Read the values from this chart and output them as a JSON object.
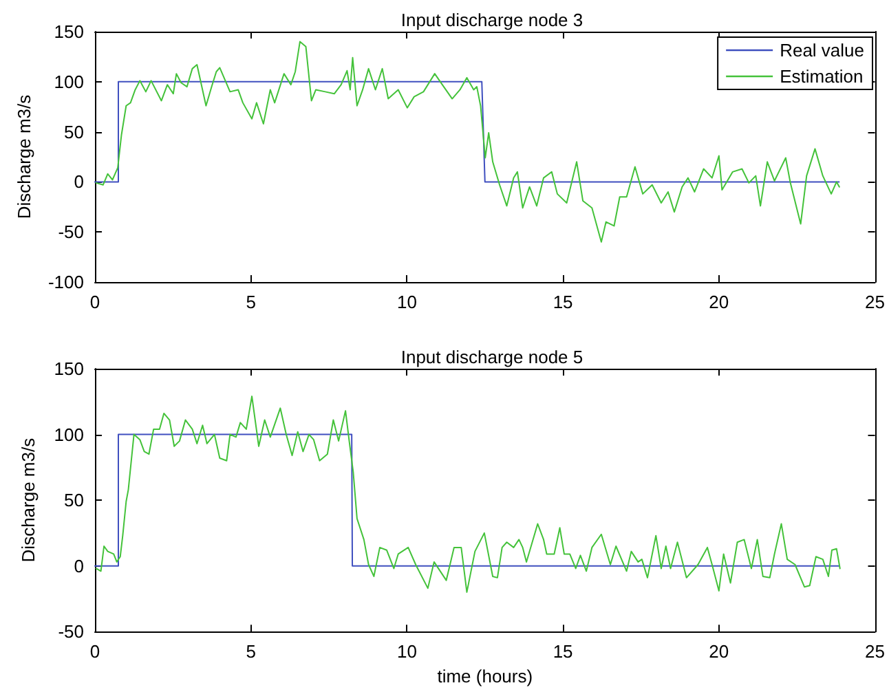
{
  "chart_data": [
    {
      "type": "line",
      "title": "Input discharge node 3",
      "ylabel": "Discharge m3/s",
      "xlim": [
        0,
        25
      ],
      "xticks": [
        0,
        5,
        10,
        15,
        20,
        25
      ],
      "ylim": [
        -100,
        150
      ],
      "yticks": [
        -100,
        -50,
        0,
        50,
        100,
        150
      ],
      "legend": "top right",
      "grid": false,
      "marker": "none",
      "line_style": "solid",
      "series": [
        {
          "name": "Real value",
          "color": "#3f4fbf",
          "x": [
            0,
            0.75,
            0.75,
            12.4,
            12.5,
            23.85
          ],
          "values": [
            0,
            0,
            100,
            100,
            0,
            0
          ]
        },
        {
          "name": "Estimation",
          "color": "#44c23a",
          "x": [
            0.04,
            0.26,
            0.41,
            0.56,
            0.73,
            0.85,
            1.0,
            1.14,
            1.29,
            1.44,
            1.63,
            1.8,
            2.13,
            2.32,
            2.51,
            2.61,
            2.76,
            2.95,
            3.12,
            3.27,
            3.56,
            3.74,
            3.89,
            4.0,
            4.33,
            4.59,
            4.74,
            5.03,
            5.18,
            5.4,
            5.62,
            5.76,
            6.06,
            6.28,
            6.42,
            6.57,
            6.76,
            6.94,
            7.08,
            7.38,
            7.67,
            7.89,
            8.08,
            8.18,
            8.26,
            8.4,
            8.58,
            8.77,
            8.99,
            9.21,
            9.4,
            9.72,
            10.01,
            10.23,
            10.53,
            10.89,
            11.18,
            11.45,
            11.7,
            11.92,
            12.14,
            12.24,
            12.36,
            12.51,
            12.62,
            12.75,
            12.97,
            13.2,
            13.42,
            13.54,
            13.71,
            13.93,
            14.16,
            14.38,
            14.64,
            14.82,
            15.12,
            15.44,
            15.64,
            15.93,
            16.23,
            16.38,
            16.64,
            16.82,
            17.04,
            17.31,
            17.56,
            17.86,
            18.15,
            18.37,
            18.57,
            18.82,
            19.01,
            19.22,
            19.51,
            19.78,
            20.0,
            20.1,
            20.44,
            20.74,
            20.96,
            21.18,
            21.33,
            21.55,
            21.78,
            22.14,
            22.29,
            22.62,
            22.81,
            23.08,
            23.33,
            23.6,
            23.77,
            23.86
          ],
          "values": [
            -1,
            -3,
            8,
            2,
            14,
            47,
            76,
            79,
            92,
            101,
            90,
            101,
            81,
            97,
            88,
            108,
            99,
            95,
            113,
            117,
            76,
            95,
            110,
            114,
            90,
            92,
            79,
            63,
            79,
            58,
            92,
            79,
            108,
            97,
            110,
            140,
            135,
            81,
            92,
            90,
            88,
            97,
            111,
            92,
            124,
            76,
            92,
            113,
            92,
            113,
            83,
            92,
            74,
            85,
            90,
            108,
            95,
            83,
            92,
            104,
            92,
            95,
            76,
            24,
            49,
            20,
            -3,
            -24,
            4,
            10,
            -26,
            -5,
            -24,
            4,
            10,
            -12,
            -21,
            20,
            -19,
            -26,
            -60,
            -40,
            -44,
            -15,
            -15,
            15,
            -12,
            -3,
            -21,
            -10,
            -30,
            -5,
            4,
            -10,
            13,
            4,
            26,
            -8,
            10,
            13,
            -1,
            6,
            -24,
            20,
            1,
            24,
            -1,
            -42,
            6,
            33,
            6,
            -12,
            0,
            -5
          ]
        }
      ]
    },
    {
      "type": "line",
      "title": "Input discharge node 5",
      "xlabel": "time (hours)",
      "ylabel": "Discharge m3/s",
      "xlim": [
        0,
        25
      ],
      "xticks": [
        0,
        5,
        10,
        15,
        20,
        25
      ],
      "ylim": [
        -50,
        150
      ],
      "yticks": [
        -50,
        0,
        50,
        100,
        150
      ],
      "grid": false,
      "marker": "none",
      "line_style": "solid",
      "series": [
        {
          "color": "#3f4fbf",
          "x": [
            0,
            0.75,
            0.75,
            8.23,
            8.25,
            23.85
          ],
          "values": [
            0,
            0,
            100,
            100,
            0,
            0
          ]
        },
        {
          "color": "#44c23a",
          "x": [
            0.04,
            0.19,
            0.29,
            0.41,
            0.6,
            0.7,
            0.81,
            0.89,
            1.0,
            1.07,
            1.25,
            1.44,
            1.58,
            1.73,
            1.88,
            2.07,
            2.21,
            2.39,
            2.54,
            2.71,
            2.9,
            3.12,
            3.27,
            3.45,
            3.59,
            3.83,
            4.0,
            4.22,
            4.33,
            4.52,
            4.66,
            4.85,
            5.03,
            5.25,
            5.44,
            5.62,
            5.94,
            6.13,
            6.32,
            6.5,
            6.67,
            6.86,
            7.01,
            7.2,
            7.45,
            7.64,
            7.81,
            8.03,
            8.15,
            8.28,
            8.4,
            8.62,
            8.77,
            8.94,
            9.13,
            9.35,
            9.58,
            9.72,
            10.04,
            10.28,
            10.67,
            10.87,
            11.26,
            11.51,
            11.74,
            11.92,
            12.18,
            12.48,
            12.75,
            12.9,
            13.05,
            13.2,
            13.42,
            13.59,
            13.71,
            13.83,
            14.19,
            14.38,
            14.48,
            14.72,
            14.9,
            15.04,
            15.22,
            15.41,
            15.56,
            15.75,
            15.93,
            16.23,
            16.52,
            16.7,
            17.04,
            17.19,
            17.41,
            17.53,
            17.71,
            17.98,
            18.15,
            18.3,
            18.45,
            18.67,
            18.96,
            19.33,
            19.63,
            19.78,
            20.0,
            20.15,
            20.37,
            20.59,
            20.81,
            21.04,
            21.23,
            21.41,
            21.63,
            21.78,
            22.0,
            22.19,
            22.44,
            22.74,
            22.91,
            23.11,
            23.33,
            23.51,
            23.62,
            23.77,
            23.88
          ],
          "values": [
            -2,
            -4,
            15,
            11,
            9,
            3,
            7,
            23,
            49,
            58,
            100,
            96,
            87,
            85,
            104,
            104,
            116,
            111,
            91,
            95,
            111,
            104,
            93,
            107,
            93,
            100,
            82,
            80,
            100,
            98,
            109,
            104,
            129,
            91,
            111,
            98,
            120,
            100,
            84,
            102,
            87,
            100,
            96,
            80,
            85,
            111,
            95,
            118,
            95,
            71,
            36,
            20,
            1,
            -8,
            14,
            12,
            -2,
            9,
            14,
            1,
            -17,
            3,
            -11,
            14,
            14,
            -20,
            11,
            25,
            -8,
            -9,
            14,
            18,
            14,
            20,
            14,
            3,
            32,
            20,
            9,
            9,
            29,
            9,
            9,
            -2,
            8,
            -4,
            14,
            24,
            1,
            15,
            -4,
            11,
            3,
            5,
            -9,
            23,
            -2,
            15,
            -2,
            18,
            -9,
            1,
            14,
            1,
            -19,
            9,
            -13,
            18,
            20,
            -2,
            20,
            -8,
            -9,
            9,
            32,
            5,
            1,
            -16,
            -15,
            7,
            5,
            -8,
            12,
            13,
            -2
          ]
        }
      ]
    }
  ]
}
